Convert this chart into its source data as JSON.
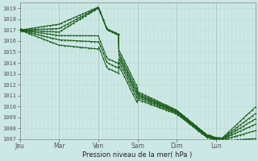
{
  "xlabel": "Pression niveau de la mer( hPa )",
  "ylim": [
    1007,
    1019.5
  ],
  "yticks": [
    1007,
    1008,
    1009,
    1010,
    1011,
    1012,
    1013,
    1014,
    1015,
    1016,
    1017,
    1018,
    1019
  ],
  "xtick_labels": [
    "Jeu",
    "Mar",
    "Ven",
    "Sam",
    "Dim",
    "Lun"
  ],
  "xtick_positions": [
    0.0,
    0.833,
    1.667,
    2.5,
    3.333,
    4.167
  ],
  "xlim": [
    0,
    5.0
  ],
  "background_color": "#cce8e4",
  "grid_color_major": "#aaccc8",
  "grid_color_minor": "#bcdcd8",
  "line_color": "#1a5c1a",
  "n_vgrid_major": 6,
  "n_vgrid_minor": 60
}
